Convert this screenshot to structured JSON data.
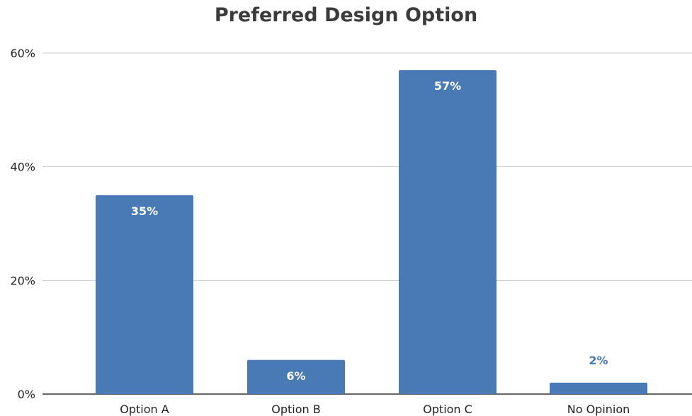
{
  "chart_data": {
    "type": "bar",
    "title": "Preferred Design Option",
    "xlabel": "",
    "ylabel": "",
    "categories": [
      "Option A",
      "Option B",
      "Option C",
      "No Opinion"
    ],
    "values": [
      35,
      6,
      57,
      2
    ],
    "data_labels": [
      "35%",
      "6%",
      "57%",
      "2%"
    ],
    "ylim": [
      0,
      60
    ],
    "yticks": [
      0,
      20,
      40,
      60
    ],
    "ytick_labels": [
      "0%",
      "20%",
      "40%",
      "60%"
    ],
    "grid": true,
    "legend": "none",
    "bar_color": "#4a7ab5",
    "label_inside_color": "#ffffff",
    "label_outside_color": "#4a7ab5"
  }
}
